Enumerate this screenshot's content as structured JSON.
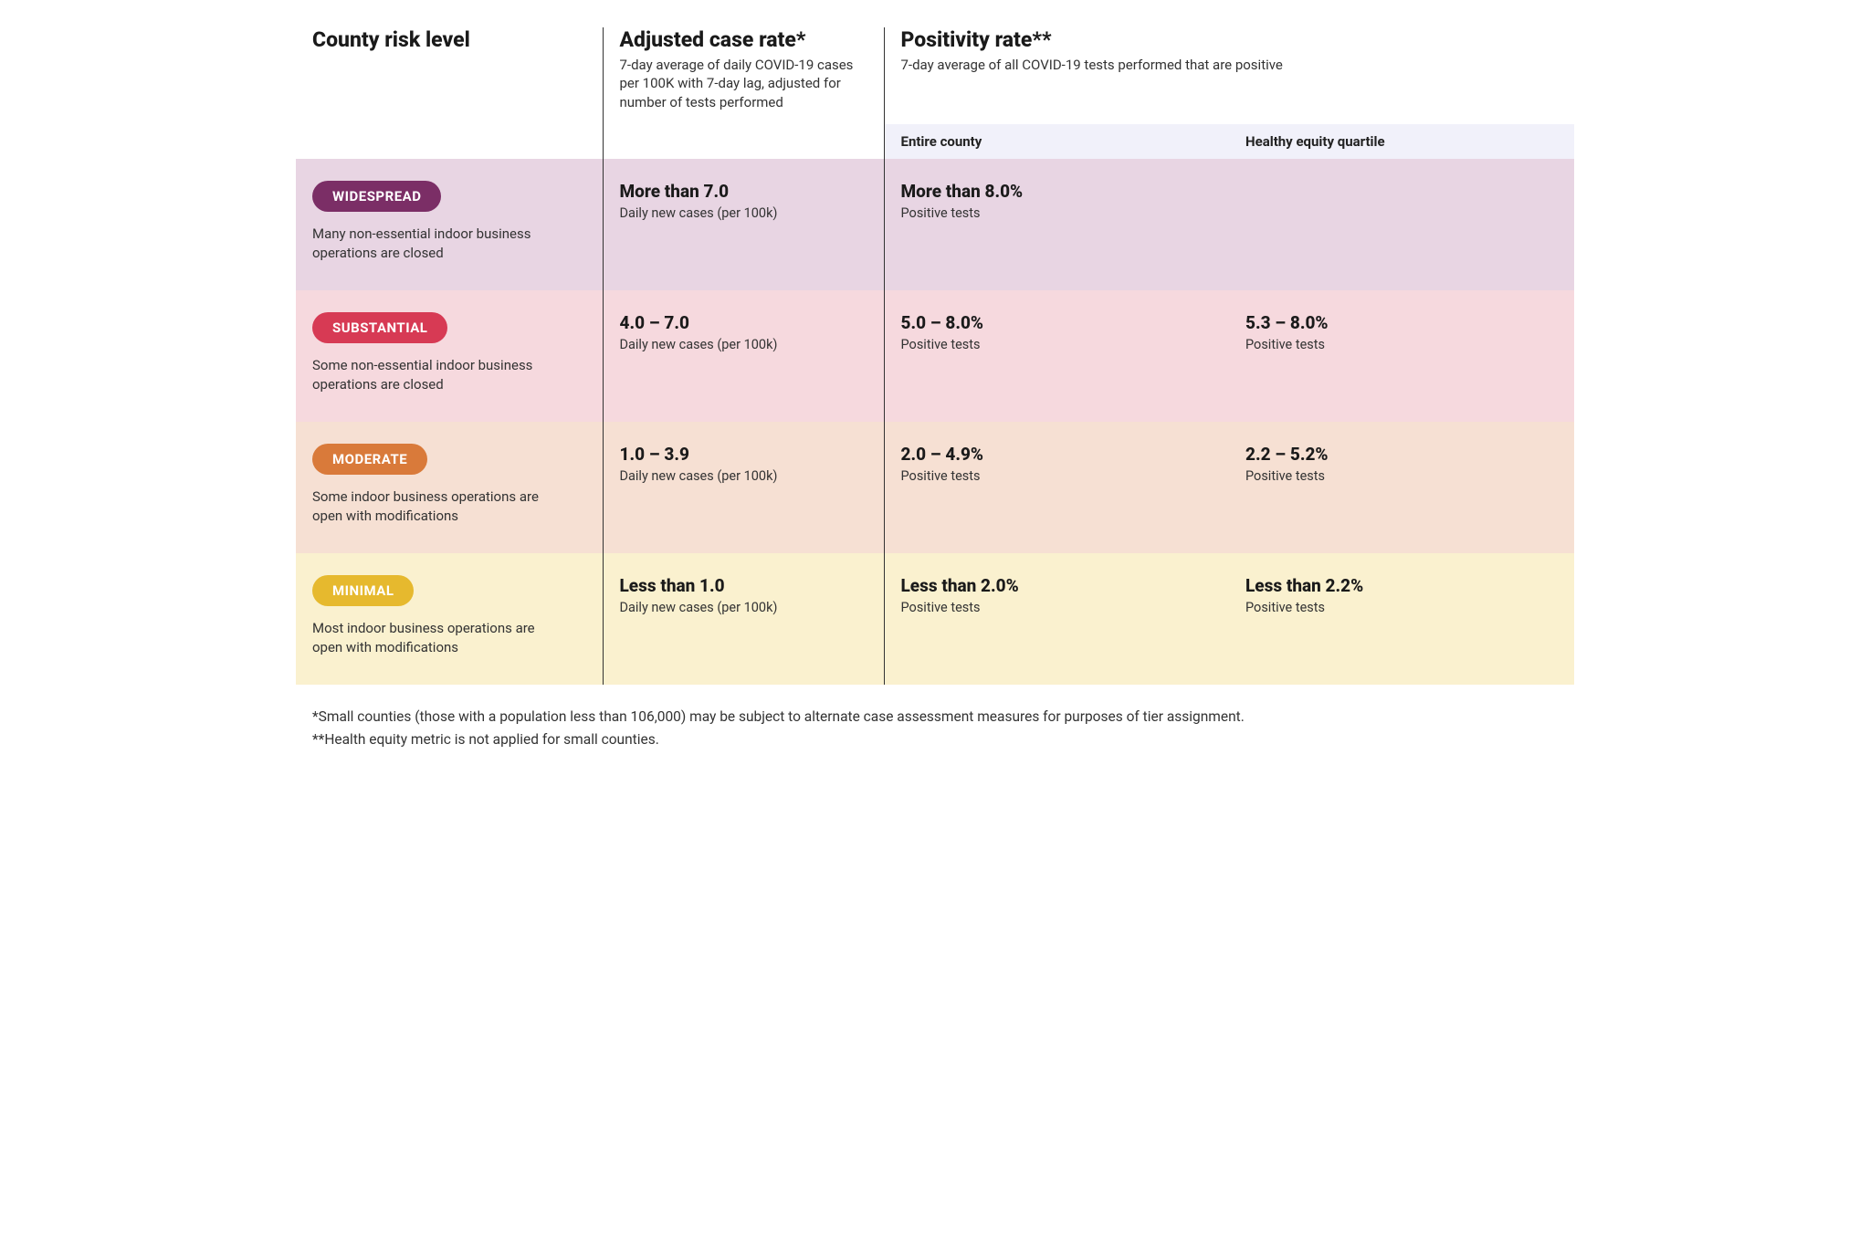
{
  "columns": {
    "risk_level": {
      "title": "County risk level",
      "subtitle": ""
    },
    "case_rate": {
      "title": "Adjusted case rate*",
      "subtitle": "7-day average of daily COVID-19 cases per 100K with 7-day lag, adjusted for number of tests performed"
    },
    "positivity": {
      "title": "Positivity rate**",
      "subtitle": "7-day average of all COVID-19 tests performed that are positive"
    }
  },
  "subheaders": {
    "entire": "Entire county",
    "heq": "Healthy equity quartile"
  },
  "tiers": [
    {
      "name": "WIDESPREAD",
      "pill_color": "#7b2e66",
      "row_bg": "#e8d5e3",
      "description": "Many non-essential indoor business operations are closed",
      "case_rate": {
        "value": "More than 7.0",
        "sub": "Daily new cases (per 100k)"
      },
      "pos_entire": {
        "value": "More than 8.0%",
        "sub": "Positive tests"
      },
      "pos_heq": {
        "value": "",
        "sub": ""
      }
    },
    {
      "name": "SUBSTANTIAL",
      "pill_color": "#d73a54",
      "row_bg": "#f6d9de",
      "description": "Some non-essential indoor business operations are closed",
      "case_rate": {
        "value": "4.0 – 7.0",
        "sub": "Daily new cases (per 100k)"
      },
      "pos_entire": {
        "value": "5.0 – 8.0%",
        "sub": "Positive tests"
      },
      "pos_heq": {
        "value": "5.3 – 8.0%",
        "sub": "Positive tests"
      }
    },
    {
      "name": "MODERATE",
      "pill_color": "#d97a3a",
      "row_bg": "#f6e0d3",
      "description": "Some indoor business operations are open with modifications",
      "case_rate": {
        "value": "1.0 – 3.9",
        "sub": "Daily new cases (per 100k)"
      },
      "pos_entire": {
        "value": "2.0 – 4.9%",
        "sub": "Positive tests"
      },
      "pos_heq": {
        "value": "2.2 – 5.2%",
        "sub": "Positive tests"
      }
    },
    {
      "name": "MINIMAL",
      "pill_color": "#e6b92e",
      "row_bg": "#faf1cf",
      "description": "Most indoor business operations are open with modifications",
      "case_rate": {
        "value": "Less than 1.0",
        "sub": "Daily new cases (per 100k)"
      },
      "pos_entire": {
        "value": "Less than 2.0%",
        "sub": "Positive tests"
      },
      "pos_heq": {
        "value": "Less than 2.2%",
        "sub": "Positive tests"
      }
    }
  ],
  "footnotes": {
    "a": "*Small counties (those with a population less than 106,000) may be subject to alternate case assessment measures for purposes of tier assignment.",
    "b": "**Health equity metric is not applied for small counties."
  },
  "layout": {
    "separator_color": "#333333",
    "subheader_bg": "#f1f1fa",
    "font_family": "system-ui"
  }
}
